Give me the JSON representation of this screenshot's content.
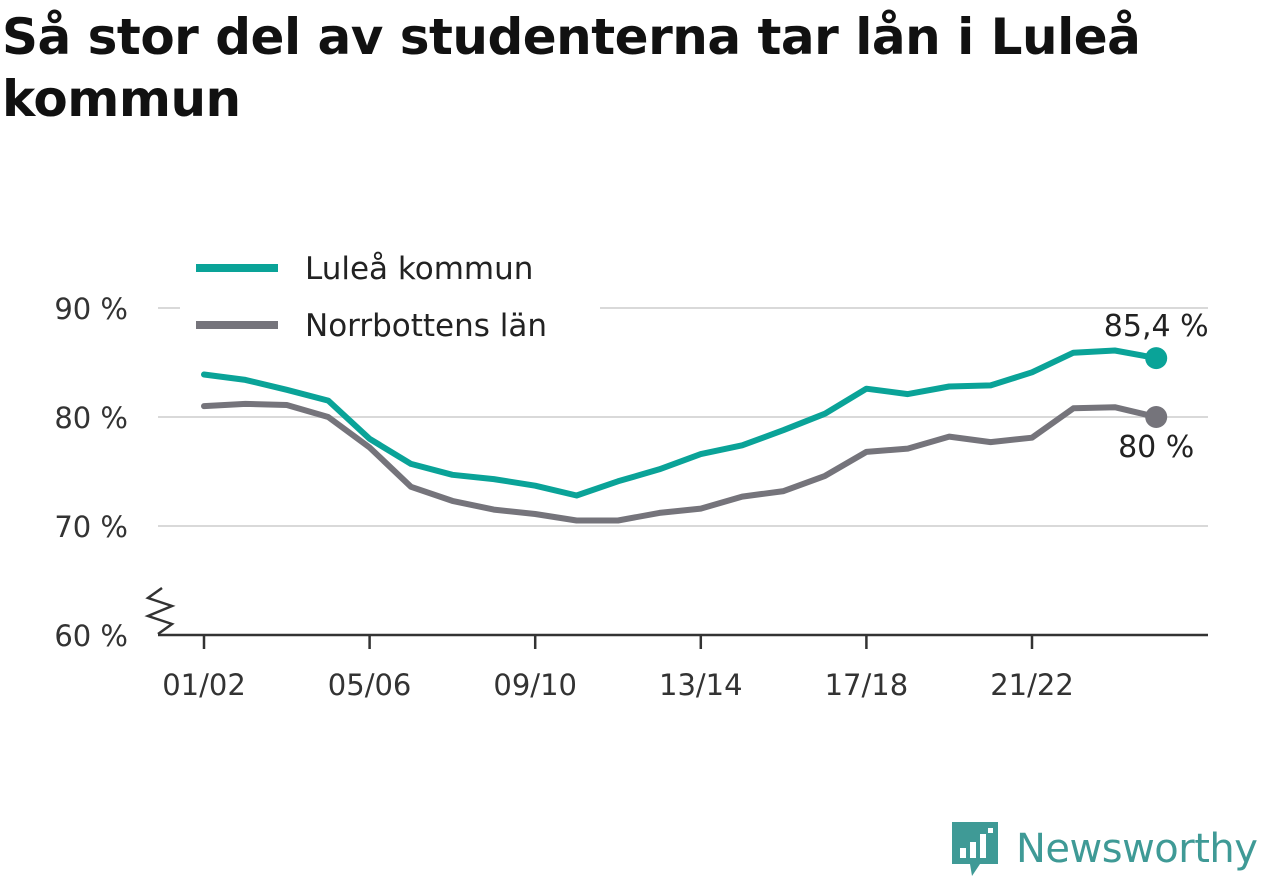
{
  "title": "Så stor del av studenterna tar lån i Luleå kommun",
  "brand": {
    "name": "Newsworthy",
    "icon": "bar-chart-speech-bubble-icon"
  },
  "chart_data": {
    "type": "line",
    "title": "Så stor del av studenterna tar lån i Luleå kommun",
    "xlabel": "",
    "ylabel": "",
    "x": [
      "01/02",
      "02/03",
      "03/04",
      "04/05",
      "05/06",
      "06/07",
      "07/08",
      "08/09",
      "09/10",
      "10/11",
      "11/12",
      "12/13",
      "13/14",
      "14/15",
      "15/16",
      "16/17",
      "17/18",
      "18/19",
      "19/20",
      "20/21",
      "21/22",
      "22/23",
      "23/24",
      "24/25"
    ],
    "x_tick_labels": [
      "01/02",
      "05/06",
      "09/10",
      "13/14",
      "17/18",
      "21/22"
    ],
    "y_ticks": [
      60,
      70,
      80,
      90
    ],
    "y_tick_labels": [
      "60 %",
      "70 %",
      "80 %",
      "90 %"
    ],
    "ylim": [
      60,
      90
    ],
    "y_axis_break": true,
    "grid": true,
    "legend_position": "top-left",
    "series": [
      {
        "name": "Luleå kommun",
        "color": "#0aa398",
        "values": [
          83.9,
          83.4,
          82.5,
          81.5,
          78.0,
          75.7,
          74.7,
          74.3,
          73.7,
          72.8,
          74.1,
          75.2,
          76.6,
          77.4,
          78.8,
          80.3,
          82.6,
          82.1,
          82.8,
          82.9,
          84.1,
          85.9,
          86.1,
          85.4
        ],
        "end_label": "85,4 %"
      },
      {
        "name": "Norrbottens län",
        "color": "#75747b",
        "values": [
          81.0,
          81.2,
          81.1,
          80.0,
          77.2,
          73.6,
          72.3,
          71.5,
          71.1,
          70.5,
          70.5,
          71.2,
          71.6,
          72.7,
          73.2,
          74.6,
          76.8,
          77.1,
          78.2,
          77.7,
          78.1,
          80.8,
          80.9,
          80.0
        ],
        "end_label": "80 %"
      }
    ]
  }
}
